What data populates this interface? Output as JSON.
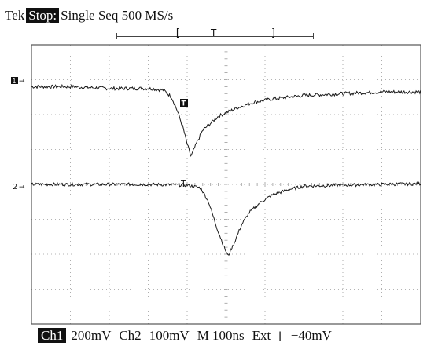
{
  "header": {
    "brand": "Tek",
    "status": "Stop:",
    "mode": "Single Seq 500 MS/s",
    "trigger_marker": "T"
  },
  "footer": {
    "ch1_label": "Ch1",
    "ch1_scale": "200mV",
    "ch2_label": "Ch2",
    "ch2_scale": "100mV",
    "timebase": "M 100ns",
    "trigger_source": "Ext",
    "trigger_level": "−40mV"
  },
  "markers": {
    "ch1": "1",
    "ch2": "2",
    "trigger": "T"
  },
  "colors": {
    "trace": "#1a1a1a",
    "grid": "#9a9a9a",
    "background": "#ffffff"
  },
  "chart_data": {
    "type": "line",
    "x_unit": "divisions",
    "y_unit": "divisions",
    "xlim": [
      0,
      10
    ],
    "ylim": [
      0,
      8
    ],
    "grid": true,
    "series": [
      {
        "name": "Ch1",
        "noise": 0.05,
        "x": [
          0,
          1.0,
          2.0,
          3.0,
          3.4,
          3.6,
          3.75,
          3.9,
          4.0,
          4.1,
          4.25,
          4.4,
          4.6,
          4.8,
          5.0,
          5.3,
          5.7,
          6.2,
          7.0,
          8.0,
          9.0,
          10.0
        ],
        "y": [
          6.8,
          6.8,
          6.75,
          6.75,
          6.7,
          6.5,
          6.1,
          5.6,
          5.15,
          4.8,
          5.2,
          5.55,
          5.75,
          5.95,
          6.05,
          6.2,
          6.35,
          6.45,
          6.55,
          6.6,
          6.65,
          6.65
        ]
      },
      {
        "name": "Ch2",
        "noise": 0.045,
        "x": [
          0,
          1.0,
          2.0,
          3.0,
          4.0,
          4.35,
          4.55,
          4.75,
          4.95,
          5.05,
          5.2,
          5.4,
          5.6,
          5.9,
          6.2,
          6.6,
          7.0,
          8.0,
          9.0,
          10.0
        ],
        "y": [
          4.0,
          4.0,
          4.0,
          4.0,
          3.98,
          3.9,
          3.5,
          2.8,
          2.2,
          1.95,
          2.3,
          2.85,
          3.2,
          3.5,
          3.7,
          3.85,
          3.95,
          3.98,
          4.0,
          4.02
        ]
      }
    ]
  }
}
